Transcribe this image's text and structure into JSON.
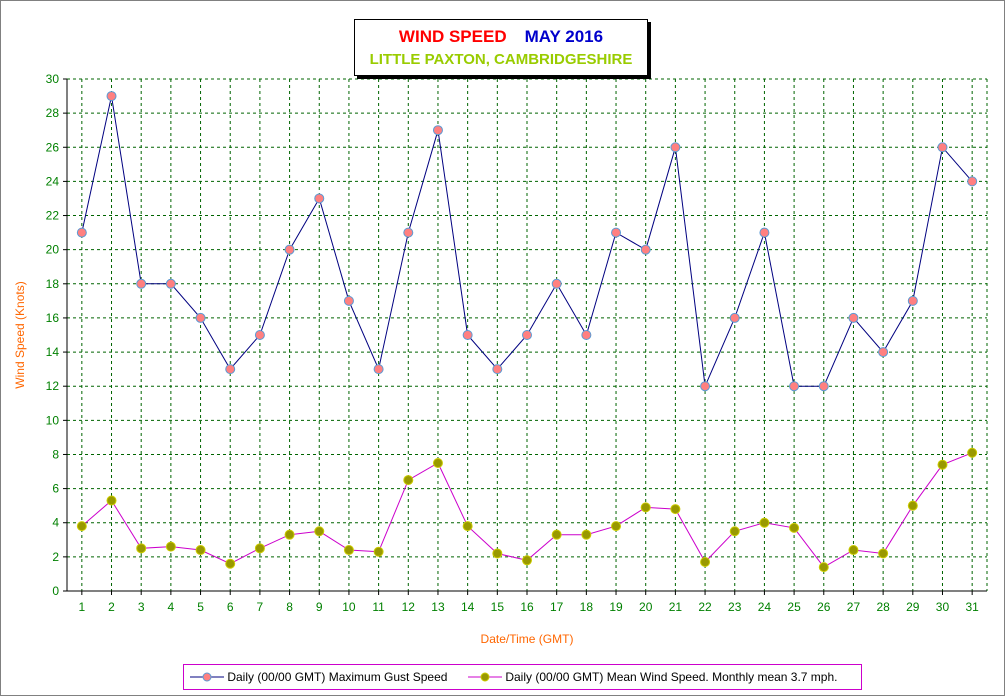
{
  "title": {
    "main": "WIND SPEED",
    "date": "MAY 2016",
    "location": "LITTLE PAXTON, CAMBRIDGESHIRE"
  },
  "colors": {
    "title_main": "#ff0000",
    "title_date": "#0000cc",
    "title_location": "#99cc00",
    "axis_labels": "#ff6600",
    "tick_labels": "#008000",
    "grid": "#006400",
    "gust_line": "#000080",
    "gust_marker": "#ff8080",
    "mean_line": "#cc00cc",
    "mean_marker": "#999900",
    "legend_border": "#cc00cc"
  },
  "chart_data": {
    "type": "line",
    "xlabel": "Date/Time (GMT)",
    "ylabel": "Wind Speed (Knots)",
    "ylim": [
      0,
      30
    ],
    "y_ticks": [
      0,
      2,
      4,
      6,
      8,
      10,
      12,
      14,
      16,
      18,
      20,
      22,
      24,
      26,
      28,
      30
    ],
    "categories": [
      "1",
      "2",
      "3",
      "4",
      "5",
      "6",
      "7",
      "8",
      "9",
      "10",
      "11",
      "12",
      "13",
      "14",
      "15",
      "16",
      "17",
      "18",
      "19",
      "20",
      "21",
      "22",
      "23",
      "24",
      "25",
      "26",
      "27",
      "28",
      "29",
      "30",
      "31"
    ],
    "grid": true,
    "legend_position": "bottom",
    "series": [
      {
        "name": "Daily (00/00 GMT) Maximum Gust Speed",
        "values": [
          21,
          29,
          18,
          18,
          16,
          13,
          15,
          20,
          23,
          17,
          13,
          21,
          27,
          15,
          13,
          15,
          18,
          15,
          21,
          20,
          26,
          12,
          16,
          21,
          12,
          12,
          16,
          14,
          17,
          26,
          24
        ]
      },
      {
        "name": "Daily (00/00 GMT) Mean Wind Speed. Monthly mean 3.7 mph.",
        "values": [
          3.8,
          5.3,
          2.5,
          2.6,
          2.4,
          1.6,
          2.5,
          3.3,
          3.5,
          2.4,
          2.3,
          6.5,
          7.5,
          3.8,
          2.2,
          1.8,
          3.3,
          3.3,
          3.8,
          4.9,
          4.8,
          1.7,
          3.5,
          4.0,
          3.7,
          1.4,
          2.4,
          2.2,
          5.0,
          7.4,
          8.1
        ]
      }
    ]
  }
}
